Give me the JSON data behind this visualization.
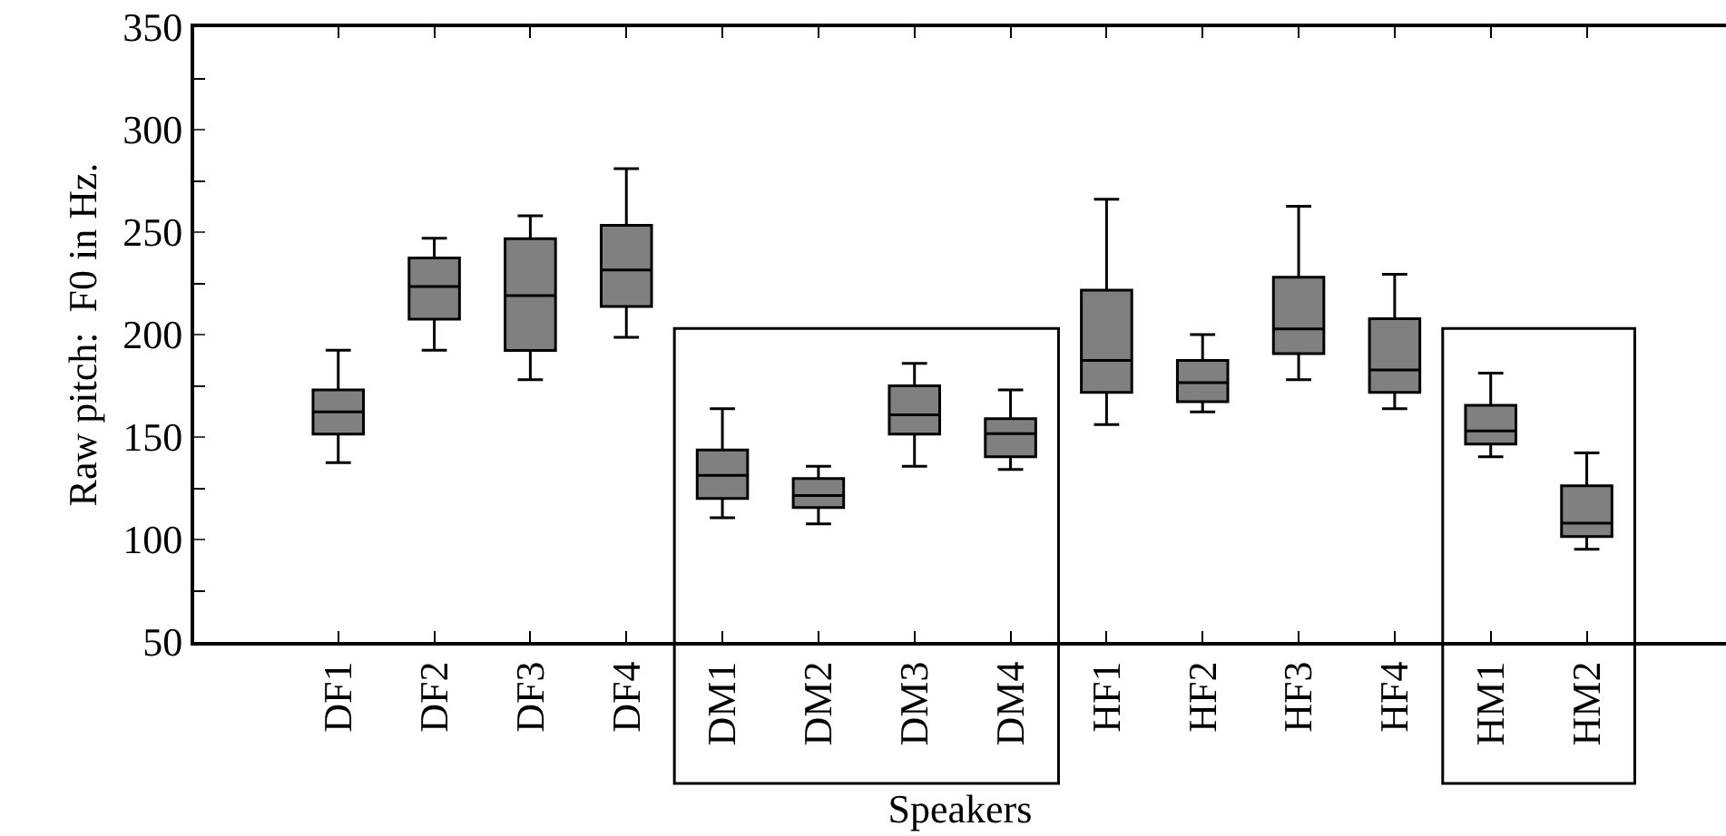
{
  "chart_data": {
    "type": "box",
    "xlabel": "Speakers",
    "ylabel": "Raw pitch:  F0 in Hz.",
    "categories": [
      "DF1",
      "DF2",
      "DF3",
      "DF4",
      "DM1",
      "DM2",
      "DM3",
      "DM4",
      "HF1",
      "HF2",
      "HF3",
      "HF4",
      "HM1",
      "HM2"
    ],
    "color": "#808080",
    "boxes": [
      {
        "low": 137.5,
        "q1": 151.4,
        "median": 162.3,
        "q3": 173,
        "high": 192.4
      },
      {
        "low": 192.4,
        "q1": 207.5,
        "median": 223.5,
        "q3": 237.4,
        "high": 247
      },
      {
        "low": 178,
        "q1": 192.2,
        "median": 219,
        "q3": 246.8,
        "high": 258
      },
      {
        "low": 198.7,
        "q1": 213.7,
        "median": 231.5,
        "q3": 253.3,
        "high": 281
      },
      {
        "low": 110.6,
        "q1": 120,
        "median": 131.3,
        "q3": 143.7,
        "high": 163.8
      },
      {
        "low": 107.6,
        "q1": 115.6,
        "median": 121.5,
        "q3": 129.8,
        "high": 135.7
      },
      {
        "low": 135.7,
        "q1": 151.4,
        "median": 160.8,
        "q3": 175,
        "high": 186
      },
      {
        "low": 134.2,
        "q1": 140.4,
        "median": 151.7,
        "q3": 159,
        "high": 173
      },
      {
        "low": 156.1,
        "q1": 171.8,
        "median": 187.4,
        "q3": 221.7,
        "high": 266
      },
      {
        "low": 162.3,
        "q1": 167.3,
        "median": 176.5,
        "q3": 187.4,
        "high": 200
      },
      {
        "low": 178,
        "q1": 190.7,
        "median": 202.8,
        "q3": 228,
        "high": 262.6
      },
      {
        "low": 163.8,
        "q1": 171.8,
        "median": 182.7,
        "q3": 207.8,
        "high": 229.4
      },
      {
        "low": 140.4,
        "q1": 146.6,
        "median": 153,
        "q3": 165.5,
        "high": 181.2
      },
      {
        "low": 95.2,
        "q1": 101.4,
        "median": 108,
        "q3": 126.2,
        "high": 142.2
      }
    ],
    "ylim": [
      50,
      350
    ],
    "yticks": [
      50,
      100,
      150,
      200,
      250,
      300,
      350
    ],
    "grid": false,
    "legend": false
  }
}
